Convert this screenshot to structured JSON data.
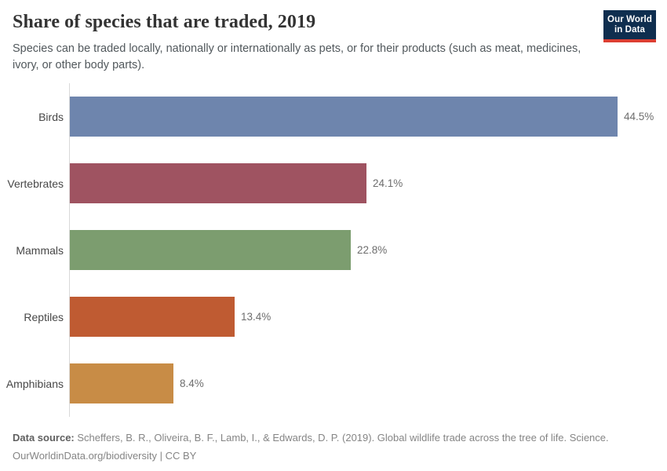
{
  "header": {
    "title": "Share of species that are traded, 2019",
    "subtitle": "Species can be traded locally, nationally or internationally as pets, or for their products (such as meat, medicines, ivory, or other body parts).",
    "logo": {
      "line1": "Our World",
      "line2": "in Data"
    }
  },
  "chart_data": {
    "type": "bar",
    "orientation": "horizontal",
    "title": "Share of species that are traded, 2019",
    "categories": [
      "Birds",
      "Vertebrates",
      "Mammals",
      "Reptiles",
      "Amphibians"
    ],
    "values": [
      44.5,
      24.1,
      22.8,
      13.4,
      8.4
    ],
    "value_labels": [
      "44.5%",
      "24.1%",
      "22.8%",
      "13.4%",
      "8.4%"
    ],
    "unit": "%",
    "xlim": [
      0,
      45
    ],
    "grid": false,
    "legend": false,
    "bar_colors": [
      "#6e85ad",
      "#9f5361",
      "#7c9d6f",
      "#bf5b32",
      "#c88c46"
    ],
    "axis_line_color": "#d9d9d9"
  },
  "footer": {
    "source_label": "Data source:",
    "source_text": " Scheffers, B. R., Oliveira, B. F., Lamb, I., & Edwards, D. P. (2019). Global wildlife trade across the tree of life. Science.",
    "url": "OurWorldinData.org/biodiversity",
    "separator": " | ",
    "license": "CC BY"
  },
  "colors": {
    "logo_bg": "#0f2e4f",
    "logo_accent": "#dc3e32",
    "title": "#333333",
    "subtitle": "#51585c"
  }
}
